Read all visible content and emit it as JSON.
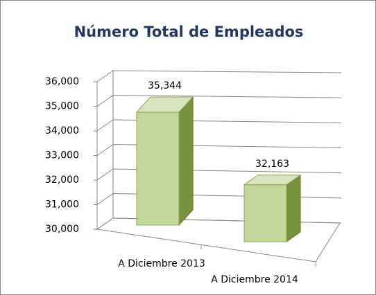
{
  "chart_data": {
    "type": "bar3d",
    "title": "Número Total de Empleados",
    "categories": [
      "A Diciembre 2013",
      "A Diciembre 2014"
    ],
    "values": [
      35344,
      32163
    ],
    "value_labels": [
      "35,344",
      "32,163"
    ],
    "color": "#c3d69b",
    "ylim": [
      30000,
      36000
    ],
    "yticks": [
      {
        "value": 30000,
        "label": "30,000"
      },
      {
        "value": 31000,
        "label": "31,000"
      },
      {
        "value": 32000,
        "label": "32,000"
      },
      {
        "value": 33000,
        "label": "33,000"
      },
      {
        "value": 34000,
        "label": "34,000"
      },
      {
        "value": 35000,
        "label": "35,000"
      },
      {
        "value": 36000,
        "label": "36,000"
      }
    ],
    "grid": true
  }
}
